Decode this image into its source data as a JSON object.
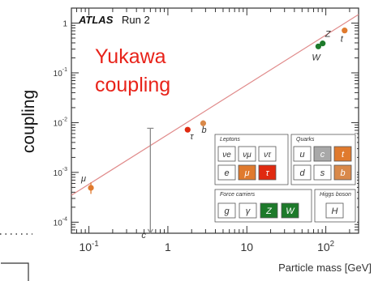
{
  "chart_data": {
    "type": "scatter",
    "experiment": "ATLAS",
    "run": "Run 2",
    "annotation": [
      "Yukawa",
      "coupling"
    ],
    "xlabel": "Particle mass [GeV]",
    "ylabel": "coupling",
    "xscale": "log",
    "yscale": "log",
    "xlim": [
      0.06,
      260
    ],
    "ylim": [
      6e-05,
      2
    ],
    "x_ticks": [
      {
        "value": 0.1,
        "label": "10",
        "exp": "-1"
      },
      {
        "value": 1,
        "label": "1",
        "exp": ""
      },
      {
        "value": 10,
        "label": "10",
        "exp": ""
      },
      {
        "value": 100,
        "label": "10",
        "exp": "2"
      }
    ],
    "y_ticks": [
      {
        "value": 0.0001,
        "label": "10",
        "exp": "-4"
      },
      {
        "value": 0.001,
        "label": "10",
        "exp": "-3"
      },
      {
        "value": 0.01,
        "label": "10",
        "exp": "-2"
      },
      {
        "value": 0.1,
        "label": "10",
        "exp": "-1"
      },
      {
        "value": 1,
        "label": "1",
        "exp": ""
      }
    ],
    "sm_line": {
      "x": [
        0.06,
        260
      ],
      "y": [
        0.000348,
        1.49
      ]
    },
    "points": [
      {
        "label": "μ",
        "x": 0.106,
        "y": 0.00049,
        "ylo": 0.00037,
        "yhi": 0.00063,
        "color": "#e07a2e"
      },
      {
        "label": "c",
        "x": 0.6,
        "y": 6.02e-05,
        "ylo": 6.02e-05,
        "yhi": 0.0077,
        "color": "#a8a8a8",
        "upper_limit": true
      },
      {
        "label": "τ",
        "x": 1.78,
        "y": 0.0072,
        "ylo": 0.0066,
        "yhi": 0.0078,
        "color": "#e02a10"
      },
      {
        "label": "b",
        "x": 2.8,
        "y": 0.0097,
        "ylo": 0.0083,
        "yhi": 0.0111,
        "color": "#d9894a"
      },
      {
        "label": "W",
        "x": 80.4,
        "y": 0.34,
        "ylo": 0.33,
        "yhi": 0.36,
        "color": "#1d7a2a"
      },
      {
        "label": "Z",
        "x": 91.2,
        "y": 0.39,
        "ylo": 0.37,
        "yhi": 0.41,
        "color": "#1d7a2a"
      },
      {
        "label": "t",
        "x": 173,
        "y": 0.71,
        "ylo": 0.66,
        "yhi": 0.76,
        "color": "#e07a2e"
      }
    ]
  },
  "legend": {
    "leptons": {
      "title": "Leptons",
      "top": [
        "νe",
        "νμ",
        "ντ"
      ],
      "bottom": [
        "e",
        "μ",
        "τ"
      ]
    },
    "quarks": {
      "title": "Quarks",
      "top": [
        "u",
        "c",
        "t"
      ],
      "bottom": [
        "d",
        "s",
        "b"
      ]
    },
    "force_carriers": {
      "title": "Force carriers",
      "items": [
        "g",
        "γ",
        "Z",
        "W"
      ]
    },
    "higgs": {
      "title": "Higgs boson",
      "items": [
        "H"
      ]
    }
  },
  "colors": {
    "line": "#e08a8a",
    "annotation": "#e8231a",
    "axis": "#333333",
    "legend_gray": "#a8a8a8",
    "legend_orange": "#e07a2e",
    "legend_red": "#e02a10",
    "legend_green": "#1d7a2a",
    "legend_tan": "#d9894a"
  }
}
